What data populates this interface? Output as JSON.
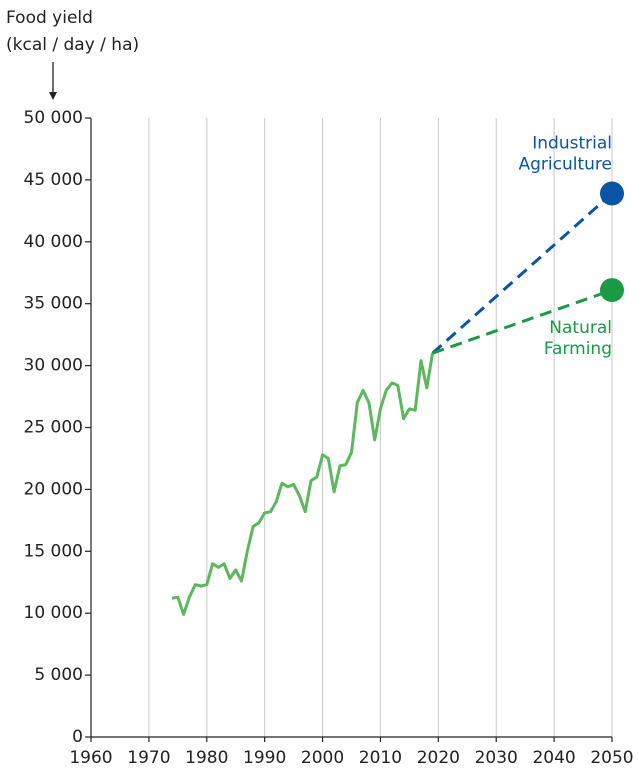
{
  "chart_data": {
    "type": "line",
    "y_label": [
      "Food yield",
      "(kcal / day / ha)"
    ],
    "xlim": [
      1960,
      2050
    ],
    "xticks": [
      1960,
      1970,
      1980,
      1990,
      2000,
      2010,
      2020,
      2030,
      2040,
      2050
    ],
    "ylim": [
      0,
      50000
    ],
    "yticks": [
      0,
      {
        "value": 5000,
        "label": "5 000"
      },
      {
        "value": 10000,
        "label": "10 000"
      },
      {
        "value": 15000,
        "label": "15 000"
      },
      {
        "value": 20000,
        "label": "20 000"
      },
      {
        "value": 25000,
        "label": "25 000"
      },
      {
        "value": 30000,
        "label": "30 000"
      },
      {
        "value": 35000,
        "label": "35 000"
      },
      {
        "value": 40000,
        "label": "40 000"
      },
      {
        "value": 45000,
        "label": "45 000"
      },
      {
        "value": 50000,
        "label": "50 000"
      }
    ],
    "grid": "x",
    "series": [
      {
        "color": "#5cb85c",
        "dashed": false,
        "x": [
          1974,
          1975,
          1976,
          1977,
          1978,
          1979,
          1980,
          1981,
          1982,
          1983,
          1984,
          1985,
          1986,
          1987,
          1988,
          1989,
          1990,
          1991,
          1992,
          1993,
          1994,
          1995,
          1996,
          1997,
          1998,
          1999,
          2000,
          2001,
          2002,
          2003,
          2004,
          2005,
          2006,
          2007,
          2008,
          2009,
          2010,
          2011,
          2012,
          2013,
          2014,
          2015,
          2016,
          2017,
          2018,
          2019
        ],
        "values": [
          11200,
          11300,
          9900,
          11300,
          12300,
          12200,
          12300,
          14000,
          13700,
          14000,
          12800,
          13500,
          12600,
          15000,
          17000,
          17300,
          18100,
          18200,
          19000,
          20500,
          20200,
          20400,
          19500,
          18200,
          20700,
          21000,
          22800,
          22500,
          19800,
          21900,
          22000,
          23000,
          27000,
          28000,
          27000,
          24000,
          26500,
          28000,
          28600,
          28400,
          25700,
          26500,
          26400,
          30400,
          28200,
          31000
        ]
      },
      {
        "color": "#0a54a6",
        "dashed": true,
        "label": [
          "Industrial",
          "Agriculture"
        ],
        "x": [
          2019,
          2050
        ],
        "values": [
          31000,
          43900
        ]
      },
      {
        "color": "#1a9a45",
        "dashed": true,
        "label": [
          "Natural",
          "Farming"
        ],
        "x": [
          2019,
          2050
        ],
        "values": [
          31000,
          36100
        ]
      }
    ]
  }
}
